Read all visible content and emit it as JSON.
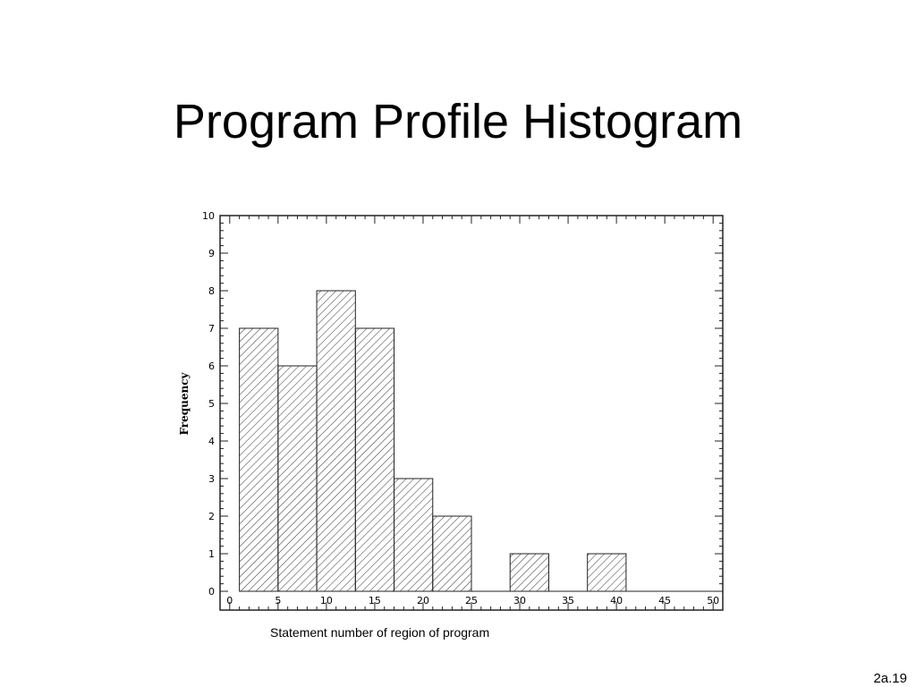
{
  "slide": {
    "title": "Program Profile Histogram",
    "caption": "Statement number of region of program",
    "number": "2a.19"
  },
  "chart_data": {
    "type": "bar",
    "ylabel": "Frequency",
    "xlim": [
      -1,
      51
    ],
    "ylim": [
      -0.5,
      10
    ],
    "x_ticks": [
      0,
      5,
      10,
      15,
      20,
      25,
      30,
      35,
      40,
      45,
      50
    ],
    "y_ticks": [
      0,
      1,
      2,
      3,
      4,
      5,
      6,
      7,
      8,
      9,
      10
    ],
    "bin_width": 4,
    "bins": [
      {
        "start": 1,
        "end": 5,
        "value": 7
      },
      {
        "start": 5,
        "end": 9,
        "value": 6
      },
      {
        "start": 9,
        "end": 13,
        "value": 8
      },
      {
        "start": 13,
        "end": 17,
        "value": 7
      },
      {
        "start": 17,
        "end": 21,
        "value": 3
      },
      {
        "start": 21,
        "end": 25,
        "value": 2
      },
      {
        "start": 25,
        "end": 29,
        "value": 0
      },
      {
        "start": 29,
        "end": 33,
        "value": 1
      },
      {
        "start": 33,
        "end": 37,
        "value": 0
      },
      {
        "start": 37,
        "end": 41,
        "value": 1
      },
      {
        "start": 41,
        "end": 45,
        "value": 0
      },
      {
        "start": 45,
        "end": 49,
        "value": 0
      }
    ],
    "bar_fill": "hatched",
    "grid": false,
    "legend": "none"
  }
}
